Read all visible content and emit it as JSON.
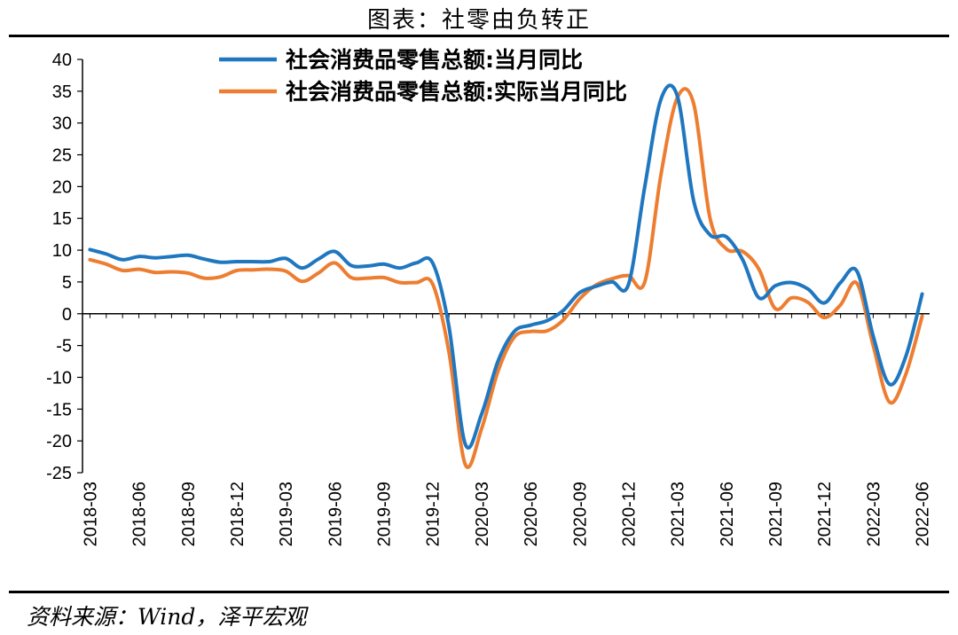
{
  "header": {
    "title": "图表：社零由负转正"
  },
  "footer": {
    "source": "资料来源：Wind，泽平宏观"
  },
  "chart_data": {
    "type": "line",
    "title": "图表：社零由负转正",
    "xlabel": "",
    "ylabel": "",
    "ylim": [
      -25,
      40
    ],
    "yticks": [
      40,
      35,
      30,
      25,
      20,
      15,
      10,
      5,
      0,
      -5,
      -10,
      -15,
      -20,
      -25
    ],
    "xtick_labels": [
      "2018-03",
      "2018-06",
      "2018-09",
      "2018-12",
      "2019-03",
      "2019-06",
      "2019-09",
      "2019-12",
      "2020-03",
      "2020-06",
      "2020-09",
      "2020-12",
      "2021-03",
      "2021-06",
      "2021-09",
      "2021-12",
      "2022-03",
      "2022-06"
    ],
    "grid": false,
    "legend_position": "top",
    "x": [
      "2018-03",
      "2018-04",
      "2018-05",
      "2018-06",
      "2018-07",
      "2018-08",
      "2018-09",
      "2018-10",
      "2018-11",
      "2018-12",
      "2019-01",
      "2019-02",
      "2019-03",
      "2019-04",
      "2019-05",
      "2019-06",
      "2019-07",
      "2019-08",
      "2019-09",
      "2019-10",
      "2019-11",
      "2019-12",
      "2020-01",
      "2020-02",
      "2020-03",
      "2020-04",
      "2020-05",
      "2020-06",
      "2020-07",
      "2020-08",
      "2020-09",
      "2020-10",
      "2020-11",
      "2020-12",
      "2021-01",
      "2021-02",
      "2021-03",
      "2021-04",
      "2021-05",
      "2021-06",
      "2021-07",
      "2021-08",
      "2021-09",
      "2021-10",
      "2021-11",
      "2021-12",
      "2022-01",
      "2022-02",
      "2022-03",
      "2022-04",
      "2022-05",
      "2022-06"
    ],
    "series": [
      {
        "name": "社会消费品零售总额:当月同比",
        "color": "#1f77c0",
        "values": [
          10.1,
          9.4,
          8.5,
          9.0,
          8.8,
          9.0,
          9.2,
          8.6,
          8.1,
          8.2,
          8.2,
          8.2,
          8.7,
          7.2,
          8.6,
          9.8,
          7.6,
          7.5,
          7.8,
          7.2,
          8.0,
          8.0,
          -2.0,
          -20.5,
          -15.8,
          -7.5,
          -2.8,
          -1.8,
          -1.1,
          0.5,
          3.3,
          4.3,
          5.0,
          4.6,
          20.0,
          33.8,
          34.2,
          17.7,
          12.4,
          12.1,
          8.5,
          2.5,
          4.4,
          4.9,
          3.9,
          1.7,
          4.9,
          6.7,
          -3.5,
          -11.1,
          -6.7,
          3.1
        ]
      },
      {
        "name": "社会消费品零售总额:实际当月同比",
        "color": "#ed7d31",
        "values": [
          8.5,
          7.8,
          6.8,
          7.0,
          6.5,
          6.6,
          6.4,
          5.6,
          5.8,
          6.8,
          6.9,
          7.0,
          6.7,
          5.1,
          6.4,
          8.0,
          5.7,
          5.6,
          5.7,
          4.9,
          4.9,
          4.7,
          -6.0,
          -23.7,
          -18.1,
          -9.1,
          -3.7,
          -2.8,
          -2.7,
          -1.0,
          2.3,
          4.5,
          5.5,
          6.0,
          5.0,
          22.0,
          34.0,
          33.0,
          15.0,
          10.2,
          9.8,
          7.0,
          0.8,
          2.5,
          1.8,
          -0.6,
          1.4,
          4.8,
          -5.0,
          -13.9,
          -9.5,
          -0.4
        ]
      }
    ]
  }
}
